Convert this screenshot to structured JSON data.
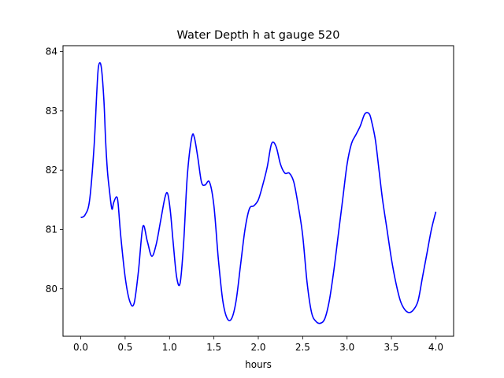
{
  "chart_data": {
    "type": "line",
    "title": "Water Depth h at gauge 520",
    "xlabel": "hours",
    "ylabel": "",
    "xlim": [
      -0.2,
      4.2
    ],
    "ylim": [
      79.2,
      84.1
    ],
    "xticks": [
      0.0,
      0.5,
      1.0,
      1.5,
      2.0,
      2.5,
      3.0,
      3.5,
      4.0
    ],
    "xtick_labels": [
      "0.0",
      "0.5",
      "1.0",
      "1.5",
      "2.0",
      "2.5",
      "3.0",
      "3.5",
      "4.0"
    ],
    "yticks": [
      80,
      81,
      82,
      83,
      84
    ],
    "ytick_labels": [
      "80",
      "81",
      "82",
      "83",
      "84"
    ],
    "grid": false,
    "series": [
      {
        "color": "#0000ff",
        "x": [
          0.0,
          0.05,
          0.1,
          0.15,
          0.18,
          0.2,
          0.23,
          0.26,
          0.28,
          0.3,
          0.32,
          0.35,
          0.37,
          0.4,
          0.42,
          0.45,
          0.5,
          0.55,
          0.6,
          0.65,
          0.7,
          0.75,
          0.8,
          0.85,
          0.9,
          0.95,
          0.98,
          1.01,
          1.04,
          1.08,
          1.12,
          1.16,
          1.2,
          1.25,
          1.28,
          1.32,
          1.36,
          1.4,
          1.45,
          1.5,
          1.55,
          1.6,
          1.65,
          1.7,
          1.75,
          1.8,
          1.85,
          1.9,
          1.95,
          2.0,
          2.05,
          2.1,
          2.15,
          2.2,
          2.25,
          2.3,
          2.35,
          2.4,
          2.45,
          2.5,
          2.55,
          2.6,
          2.65,
          2.7,
          2.75,
          2.8,
          2.85,
          2.9,
          2.95,
          3.0,
          3.05,
          3.1,
          3.15,
          3.2,
          3.25,
          3.28,
          3.32,
          3.36,
          3.4,
          3.45,
          3.5,
          3.55,
          3.6,
          3.65,
          3.7,
          3.75,
          3.8,
          3.85,
          3.9,
          3.95,
          4.0
        ],
        "y": [
          81.2,
          81.25,
          81.5,
          82.4,
          83.3,
          83.75,
          83.75,
          83.2,
          82.5,
          82.0,
          81.7,
          81.35,
          81.45,
          81.55,
          81.45,
          80.9,
          80.2,
          79.8,
          79.75,
          80.3,
          81.05,
          80.8,
          80.55,
          80.75,
          81.15,
          81.55,
          81.6,
          81.3,
          80.8,
          80.2,
          80.1,
          80.8,
          81.9,
          82.55,
          82.55,
          82.2,
          81.8,
          81.75,
          81.8,
          81.4,
          80.5,
          79.8,
          79.5,
          79.5,
          79.8,
          80.4,
          81.0,
          81.35,
          81.4,
          81.5,
          81.75,
          82.05,
          82.45,
          82.4,
          82.1,
          81.95,
          81.95,
          81.8,
          81.4,
          80.9,
          80.1,
          79.6,
          79.45,
          79.42,
          79.5,
          79.8,
          80.3,
          80.9,
          81.5,
          82.1,
          82.45,
          82.6,
          82.75,
          82.95,
          82.95,
          82.8,
          82.5,
          82.0,
          81.5,
          81.0,
          80.5,
          80.1,
          79.8,
          79.65,
          79.6,
          79.65,
          79.8,
          80.2,
          80.6,
          81.0,
          81.3
        ]
      }
    ]
  }
}
